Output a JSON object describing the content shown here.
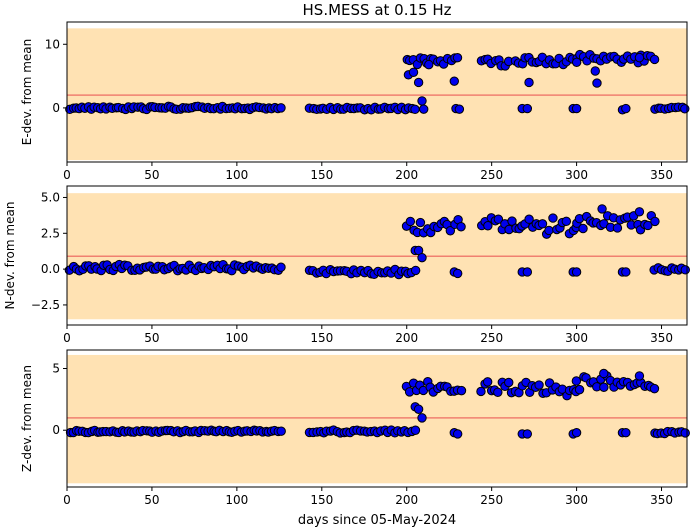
{
  "chart_data": {
    "type": "scatter",
    "title": "HS.MESS at 0.15 Hz",
    "xlabel": "days since 05-May-2024",
    "xlim": [
      0,
      365
    ],
    "xticks": [
      0,
      50,
      100,
      150,
      200,
      250,
      300,
      350
    ],
    "colors": {
      "band": "#ffe2b3",
      "threshold": "#f08070",
      "marker_fill": "#0000ee",
      "marker_edge": "#000000"
    },
    "panels": [
      {
        "name": "east",
        "ylabel": "E-dev. from mean",
        "ylim": [
          -8.5,
          13.5
        ],
        "yticks": [
          0,
          10
        ],
        "band": [
          -8.2,
          12.5
        ],
        "threshold": 2.0,
        "segments": [
          {
            "xs": [
              0,
              127
            ],
            "step": 1.8,
            "y": 0.0,
            "amp": 0.25
          },
          {
            "xs": [
              143,
              205
            ],
            "step": 2.0,
            "y": -0.1,
            "amp": 0.2
          },
          {
            "xs": [
              200,
              230
            ],
            "step": 2.0,
            "y": 7.4,
            "amp": 0.6
          },
          {
            "xs": [
              244,
              260
            ],
            "step": 2.0,
            "y": 7.2,
            "amp": 0.6
          },
          {
            "xs": [
              264,
              300
            ],
            "step": 2.0,
            "y": 7.4,
            "amp": 0.6
          },
          {
            "xs": [
              300,
              346
            ],
            "step": 2.0,
            "y": 7.7,
            "amp": 0.7
          },
          {
            "xs": [
              346,
              365
            ],
            "step": 2.0,
            "y": 0.0,
            "amp": 0.2
          }
        ],
        "extra_points": [
          [
            201,
            5.2
          ],
          [
            204,
            5.6
          ],
          [
            207,
            4.0
          ],
          [
            209,
            1.1
          ],
          [
            210,
            -0.2
          ],
          [
            213,
            6.8
          ],
          [
            228,
            4.2
          ],
          [
            229,
            -0.1
          ],
          [
            231,
            -0.2
          ],
          [
            268,
            -0.1
          ],
          [
            271,
            -0.1
          ],
          [
            272,
            4.0
          ],
          [
            298,
            -0.1
          ],
          [
            300,
            -0.1
          ],
          [
            311,
            5.8
          ],
          [
            312,
            3.9
          ],
          [
            327,
            -0.3
          ],
          [
            329,
            -0.1
          ],
          [
            337,
            7.9
          ]
        ]
      },
      {
        "name": "north",
        "ylabel": "N-dev. from mean",
        "ylim": [
          -3.9,
          5.8
        ],
        "yticks": [
          -2.5,
          0.0,
          2.5,
          5.0
        ],
        "yticklabels": [
          "−2.5",
          "0.0",
          "2.5",
          "5.0"
        ],
        "band": [
          -3.5,
          5.3
        ],
        "threshold": 0.9,
        "segments": [
          {
            "xs": [
              0,
              127
            ],
            "step": 1.8,
            "y": 0.1,
            "amp": 0.22
          },
          {
            "xs": [
              143,
              205
            ],
            "step": 2.0,
            "y": -0.2,
            "amp": 0.18
          },
          {
            "xs": [
              200,
              232
            ],
            "step": 2.0,
            "y": 3.0,
            "amp": 0.5
          },
          {
            "xs": [
              244,
              262
            ],
            "step": 2.0,
            "y": 3.1,
            "amp": 0.5
          },
          {
            "xs": [
              264,
              300
            ],
            "step": 2.0,
            "y": 3.0,
            "amp": 0.6
          },
          {
            "xs": [
              300,
              346
            ],
            "step": 2.0,
            "y": 3.3,
            "amp": 0.6
          },
          {
            "xs": [
              346,
              365
            ],
            "step": 2.0,
            "y": 0.0,
            "amp": 0.18
          }
        ],
        "extra_points": [
          [
            205,
            1.3
          ],
          [
            207,
            1.3
          ],
          [
            209,
            0.8
          ],
          [
            228,
            -0.2
          ],
          [
            230,
            -0.3
          ],
          [
            268,
            -0.2
          ],
          [
            271,
            -0.2
          ],
          [
            298,
            -0.2
          ],
          [
            300,
            -0.2
          ],
          [
            327,
            -0.2
          ],
          [
            329,
            -0.2
          ],
          [
            337,
            4.0
          ],
          [
            315,
            4.2
          ]
        ]
      },
      {
        "name": "vertical",
        "ylabel": "Z-dev. from mean",
        "ylim": [
          -4.6,
          6.5
        ],
        "yticks": [
          0,
          5
        ],
        "band": [
          -4.3,
          6.1
        ],
        "threshold": 1.0,
        "segments": [
          {
            "xs": [
              0,
              127
            ],
            "step": 1.8,
            "y": -0.1,
            "amp": 0.1
          },
          {
            "xs": [
              143,
              205
            ],
            "step": 2.0,
            "y": -0.1,
            "amp": 0.12
          },
          {
            "xs": [
              200,
              232
            ],
            "step": 2.0,
            "y": 3.5,
            "amp": 0.5
          },
          {
            "xs": [
              244,
              262
            ],
            "step": 2.0,
            "y": 3.5,
            "amp": 0.5
          },
          {
            "xs": [
              264,
              300
            ],
            "step": 2.0,
            "y": 3.4,
            "amp": 0.6
          },
          {
            "xs": [
              300,
              346
            ],
            "step": 2.0,
            "y": 3.8,
            "amp": 0.6
          },
          {
            "xs": [
              346,
              365
            ],
            "step": 2.0,
            "y": -0.2,
            "amp": 0.1
          }
        ],
        "extra_points": [
          [
            205,
            1.9
          ],
          [
            207,
            1.7
          ],
          [
            209,
            1.0
          ],
          [
            228,
            -0.2
          ],
          [
            230,
            -0.3
          ],
          [
            268,
            -0.3
          ],
          [
            271,
            -0.3
          ],
          [
            298,
            -0.3
          ],
          [
            300,
            -0.2
          ],
          [
            327,
            -0.2
          ],
          [
            329,
            -0.2
          ],
          [
            316,
            4.6
          ],
          [
            337,
            4.4
          ]
        ]
      }
    ]
  }
}
